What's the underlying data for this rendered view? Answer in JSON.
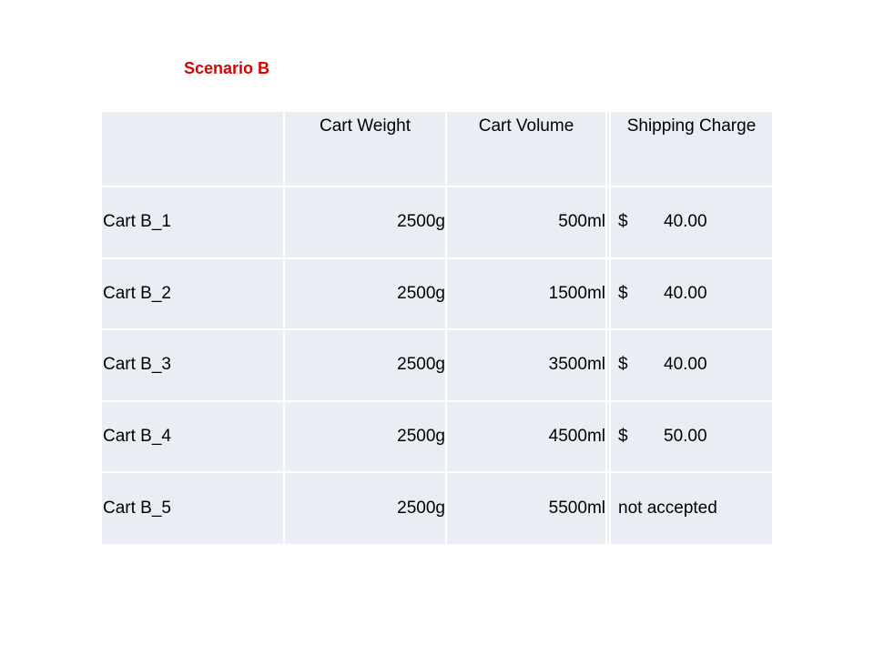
{
  "title": "Scenario B",
  "title_color": "#e00000",
  "table": {
    "headers": [
      "",
      "Cart Weight",
      "Cart Volume",
      "Shipping Charge"
    ],
    "rows": [
      {
        "cart": "Cart B_1",
        "weight": "2500g",
        "volume": "500ml",
        "currency": "$",
        "charge": "40.00"
      },
      {
        "cart": "Cart B_2",
        "weight": "2500g",
        "volume": "1500ml",
        "currency": "$",
        "charge": "40.00"
      },
      {
        "cart": "Cart B_3",
        "weight": "2500g",
        "volume": "3500ml",
        "currency": "$",
        "charge": "40.00"
      },
      {
        "cart": "Cart B_4",
        "weight": "2500g",
        "volume": "4500ml",
        "currency": "$",
        "charge": "50.00"
      },
      {
        "cart": "Cart B_5",
        "weight": "2500g",
        "volume": "5500ml",
        "currency": "",
        "charge": "not accepted"
      }
    ]
  }
}
